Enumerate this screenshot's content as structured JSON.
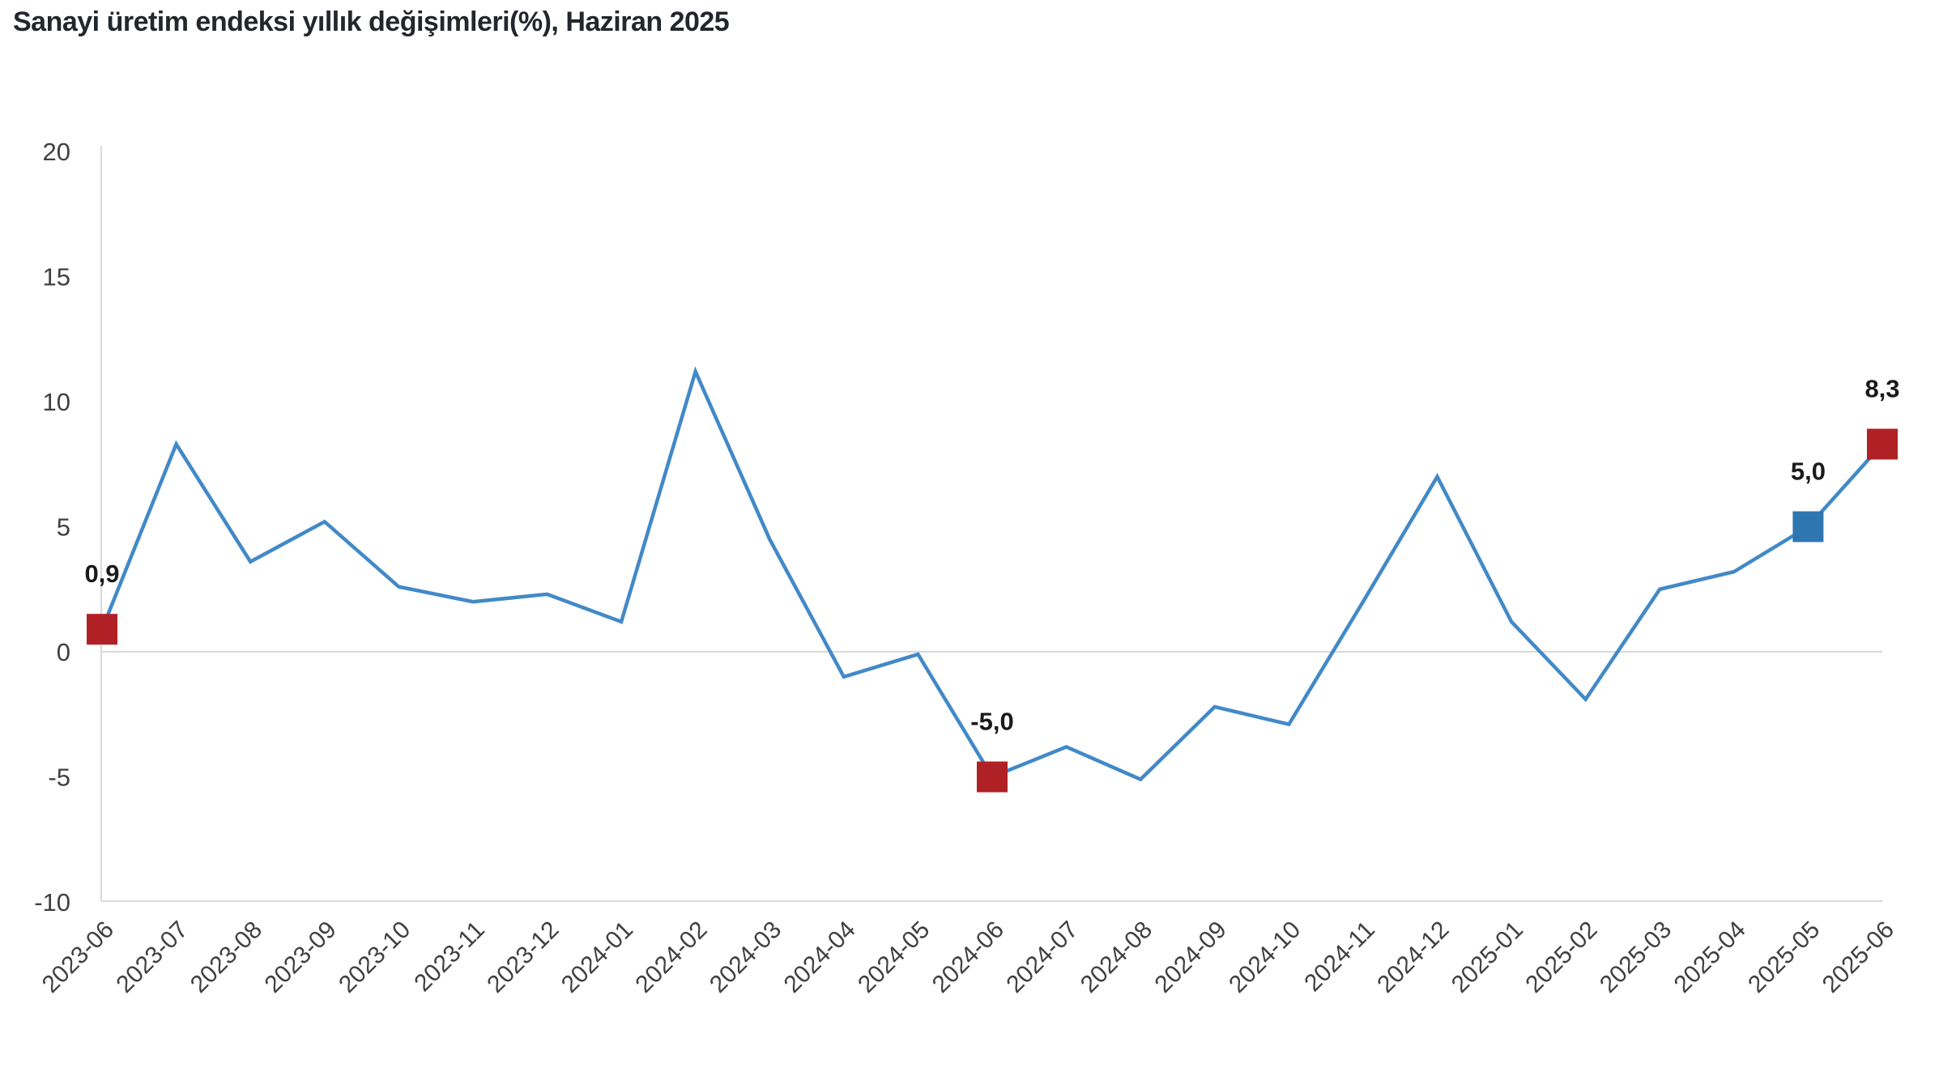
{
  "title": "Sanayi üretim endeksi yıllık değişimleri(%), Haziran 2025",
  "colors": {
    "background": "#ffffff",
    "line": "#4289c7",
    "marker_red": "#b02126",
    "marker_blue": "#2e76b0",
    "axis_line": "#d9d9d9",
    "tick_text": "#404040",
    "title_text": "#23272d",
    "data_label_text": "#1a1a1a"
  },
  "chart_data": {
    "type": "line",
    "title": "Sanayi üretim endeksi yıllık değişimleri(%), Haziran 2025",
    "xlabel": "",
    "ylabel": "",
    "ylim": [
      -10,
      20
    ],
    "yticks": [
      20,
      15,
      10,
      5,
      0,
      -5,
      -10
    ],
    "grid": "zero-line-and-bottom-border-only",
    "legend": "none",
    "decimal_separator": ",",
    "categories": [
      "2023-06",
      "2023-07",
      "2023-08",
      "2023-09",
      "2023-10",
      "2023-11",
      "2023-12",
      "2024-01",
      "2024-02",
      "2024-03",
      "2024-04",
      "2024-05",
      "2024-06",
      "2024-07",
      "2024-08",
      "2024-09",
      "2024-10",
      "2024-11",
      "2024-12",
      "2025-01",
      "2025-02",
      "2025-03",
      "2025-04",
      "2025-05",
      "2025-06"
    ],
    "values": [
      0.9,
      8.3,
      3.6,
      5.2,
      2.6,
      2.0,
      2.3,
      1.2,
      11.2,
      4.5,
      -1.0,
      -0.1,
      -5.0,
      -3.8,
      -5.1,
      -2.2,
      -2.9,
      2.0,
      7.0,
      1.2,
      -1.9,
      2.5,
      3.2,
      5.0,
      8.3
    ],
    "highlighted_points": [
      {
        "category": "2023-06",
        "value": 0.9,
        "label": "0,9",
        "marker": "square",
        "color_key": "marker_red"
      },
      {
        "category": "2024-06",
        "value": -5.0,
        "label": "-5,0",
        "marker": "square",
        "color_key": "marker_red"
      },
      {
        "category": "2025-05",
        "value": 5.0,
        "label": "5,0",
        "marker": "square",
        "color_key": "marker_blue"
      },
      {
        "category": "2025-06",
        "value": 8.3,
        "label": "8,3",
        "marker": "square",
        "color_key": "marker_red"
      }
    ]
  }
}
